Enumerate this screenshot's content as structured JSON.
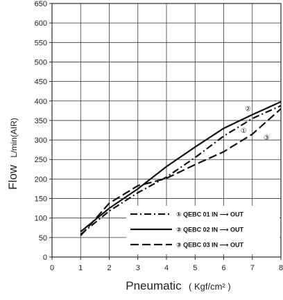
{
  "chart_data": {
    "type": "line",
    "title": "",
    "xlabel": "Pneumatic",
    "xlabel_unit": "( Kgf/cm² )",
    "ylabel": "Flow",
    "ylabel_unit": "L/min(AIR)",
    "xlim": [
      0,
      8
    ],
    "ylim": [
      0,
      650
    ],
    "x_ticks": [
      0,
      1,
      2,
      3,
      4,
      5,
      6,
      7,
      8
    ],
    "y_ticks": [
      0,
      50,
      100,
      150,
      200,
      250,
      300,
      350,
      400,
      450,
      500,
      550,
      600,
      650
    ],
    "grid": true,
    "legend_position": "bottom-right",
    "series": [
      {
        "name": "① QEBC 01 IN ⟶ OUT",
        "callout": "①",
        "style": "dash-dot",
        "color": "#111111",
        "x": [
          1,
          2,
          3,
          4,
          5,
          6,
          7,
          8
        ],
        "y": [
          58,
          118,
          165,
          205,
          255,
          310,
          355,
          388
        ]
      },
      {
        "name": "② QEBC 02 IN ⟶ OUT",
        "callout": "②",
        "style": "solid",
        "color": "#111111",
        "x": [
          1,
          2,
          3,
          4,
          5,
          6,
          7,
          8
        ],
        "y": [
          65,
          125,
          175,
          232,
          282,
          330,
          365,
          398
        ]
      },
      {
        "name": "③ QEBC 03 IN ⟶ OUT",
        "callout": "③",
        "style": "dashed",
        "color": "#111111",
        "x": [
          1,
          2,
          3,
          3.5,
          4,
          5,
          6,
          7,
          8
        ],
        "y": [
          55,
          138,
          183,
          192,
          202,
          237,
          270,
          315,
          380
        ]
      }
    ]
  }
}
